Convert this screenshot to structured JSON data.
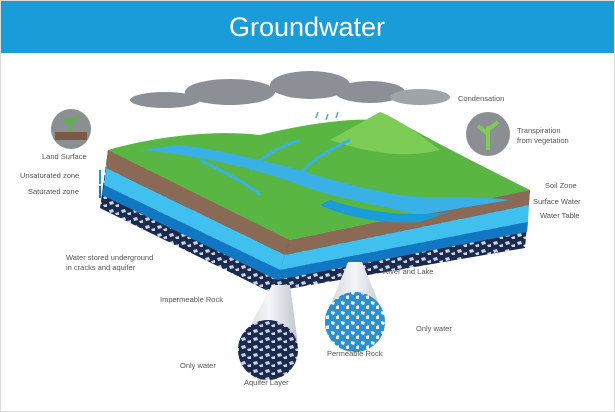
{
  "header": {
    "title": "Groundwater"
  },
  "labels": {
    "condensation": "Condensation",
    "transpiration": [
      "Transpiration",
      "from vegetation"
    ],
    "land_surface": "Land Surface",
    "unsaturated_zone": "Unsaturated zone",
    "saturated_zone": "Saturated zone",
    "soil_zone": "Soil Zone",
    "surface_water": "Surface Water",
    "water_table": "Water Table",
    "water_stored": [
      "Water stored underground",
      "in cracks and aquifer"
    ],
    "river_and_lake": "River and Lake",
    "impermeable_rock": "Impermeable Rock",
    "only_water_right": "Only water",
    "permeable_rock": "Permeable Rock",
    "only_water_left": "Only water",
    "aquifer_layer": "Aquifer Layer"
  }
}
